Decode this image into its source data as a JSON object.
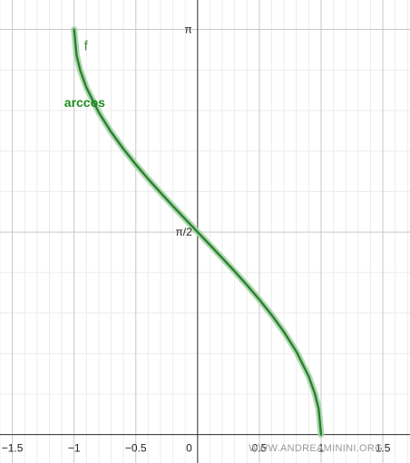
{
  "chart_data": {
    "type": "line",
    "function_name": "f",
    "curve_label": "arccos",
    "series": [
      {
        "x": [
          -1,
          -0.98,
          -0.95,
          -0.9,
          -0.8,
          -0.7,
          -0.6,
          -0.5,
          -0.4,
          -0.3,
          -0.2,
          -0.1,
          0,
          0.1,
          0.2,
          0.3,
          0.4,
          0.5,
          0.6,
          0.7,
          0.8,
          0.9,
          0.95,
          0.98,
          1
        ],
        "y": [
          3.1416,
          2.9413,
          2.824,
          2.6906,
          2.4981,
          2.3462,
          2.2143,
          2.0944,
          1.9823,
          1.8755,
          1.7722,
          1.671,
          1.5708,
          1.4706,
          1.3694,
          1.2661,
          1.1593,
          1.0472,
          0.9273,
          0.7954,
          0.6435,
          0.451,
          0.3176,
          0.2003,
          0
        ]
      }
    ],
    "x_ticks": [
      {
        "value": -1.5,
        "label": "−1.5"
      },
      {
        "value": -1,
        "label": "−1"
      },
      {
        "value": -0.5,
        "label": "−0.5"
      },
      {
        "value": 0,
        "label": "0"
      },
      {
        "value": 0.5,
        "label": "0.5"
      },
      {
        "value": 1,
        "label": "1"
      },
      {
        "value": 1.5,
        "label": "1.5"
      }
    ],
    "y_ticks": [
      {
        "value": 1.5708,
        "label": "π/2"
      },
      {
        "value": 3.1416,
        "label": "π"
      }
    ],
    "xlim": [
      -1.6,
      1.72
    ],
    "ylim": [
      -0.22,
      3.37
    ],
    "grid": true,
    "colors": {
      "curve": "#2e7d32",
      "curve_halo": "#a5d6a7",
      "grid_major": "#c8c8c8",
      "grid_minor": "#ececec",
      "axis": "#333333"
    }
  },
  "watermark": "WWW.ANDREAMININI.ORG"
}
